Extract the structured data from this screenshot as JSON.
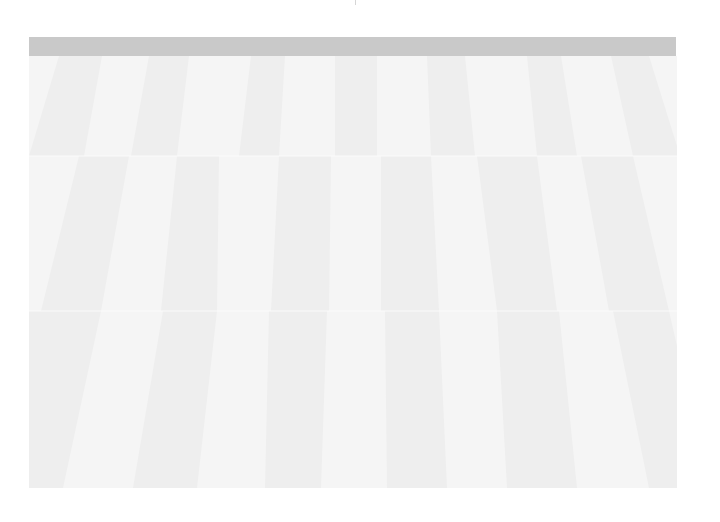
{
  "window": {
    "title": ""
  },
  "colors": {
    "toolbar": "#c9c9c9",
    "tile_light": "#f5f5f5",
    "tile_dark": "#eeeeee",
    "background": "#ffffff"
  },
  "icons": {
    "top_marker": "tick-icon"
  }
}
